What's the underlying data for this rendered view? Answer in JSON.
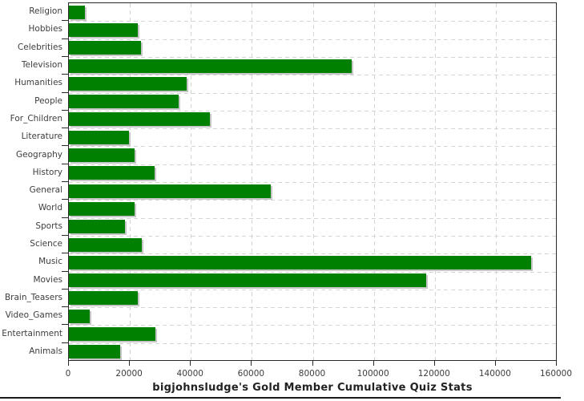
{
  "chart_data": {
    "type": "bar",
    "orientation": "horizontal",
    "title": "bigjohnsludge's Gold Member Cumulative Quiz Stats",
    "categories": [
      "Religion",
      "Hobbies",
      "Celebrities",
      "Television",
      "Humanities",
      "People",
      "For_Children",
      "Literature",
      "Geography",
      "History",
      "General",
      "World",
      "Sports",
      "Science",
      "Music",
      "Movies",
      "Brain_Teasers",
      "Video_Games",
      "Entertainment",
      "Animals"
    ],
    "values": [
      5300,
      22500,
      23600,
      92800,
      38700,
      36000,
      46200,
      19700,
      21400,
      28000,
      66100,
      21400,
      18500,
      23800,
      151700,
      117100,
      22600,
      6700,
      28400,
      16900
    ],
    "xlabel": "",
    "ylabel": "",
    "xlim": [
      0,
      160000
    ],
    "x_tick_step": 20000,
    "x_tick_labels": [
      "0",
      "20000",
      "40000",
      "60000",
      "80000",
      "100000",
      "120000",
      "140000",
      "160000"
    ],
    "grid": true,
    "legend": false
  },
  "colors": {
    "bar": "#008000",
    "bar_shadow": "#c6c6c6",
    "grid": "#d4d4d4",
    "axis": "#2a2a2a",
    "tick_label": "#3d3d3d",
    "title": "#222222",
    "background": "#ffffff"
  }
}
